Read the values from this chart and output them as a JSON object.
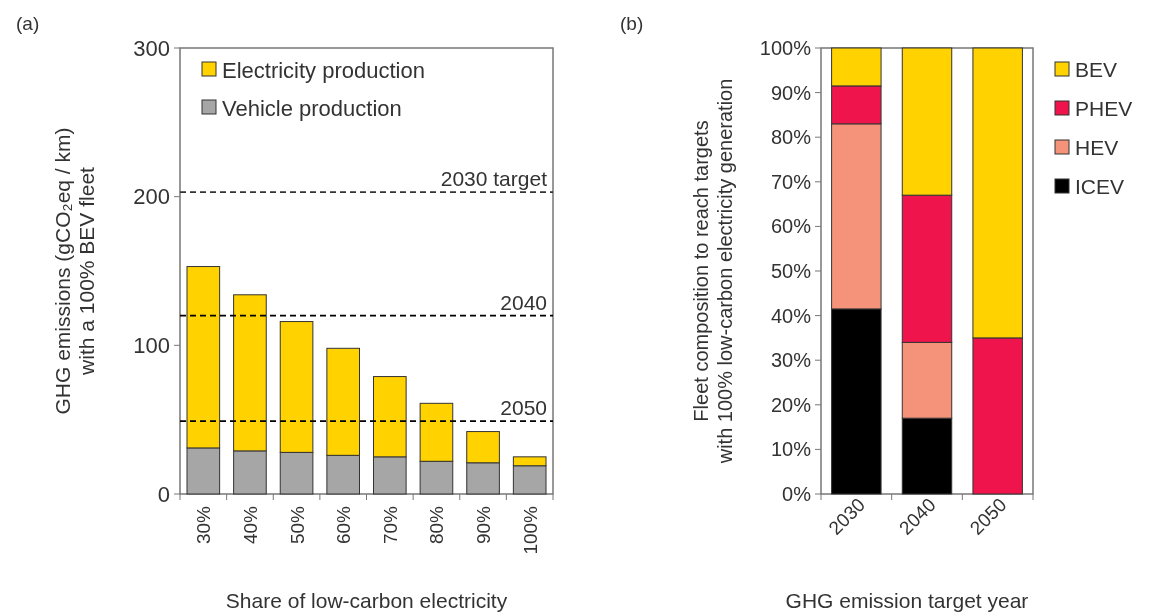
{
  "chart_data": [
    {
      "type": "bar",
      "stacked": true,
      "xlabel": "Share of low-carbon electricity",
      "ylabel": "GHG emissions (gCO₂eq / km)\nwith a 100% BEV fleet",
      "categories": [
        "30%",
        "40%",
        "50%",
        "60%",
        "70%",
        "80%",
        "90%",
        "100%"
      ],
      "series": [
        {
          "name": "Vehicle production",
          "color": "#a6a6a6",
          "values": [
            31,
            29,
            28,
            26,
            25,
            22,
            21,
            19
          ]
        },
        {
          "name": "Electricity production",
          "color": "#ffd200",
          "values": [
            122,
            105,
            88,
            72,
            54,
            39,
            21,
            6
          ]
        }
      ],
      "ylim": [
        0,
        300
      ],
      "yticks": [
        0,
        100,
        200,
        300
      ],
      "grid": false,
      "legend": "top left",
      "ref_lines": [
        {
          "axis": "y",
          "value": 203,
          "color": "#333333",
          "line_style": "dashed"
        },
        {
          "axis": "y",
          "value": 120,
          "color": "#000000",
          "line_style": "dashed"
        },
        {
          "axis": "y",
          "value": 49,
          "color": "#000000",
          "line_style": "dashed"
        }
      ],
      "annotations": [
        "(a)",
        {
          "text": "2030 target",
          "y": 203
        },
        {
          "text": "2040",
          "y": 120
        },
        {
          "text": "2050",
          "y": 49
        }
      ]
    },
    {
      "type": "bar",
      "stacked": true,
      "xlabel": "GHG emission target year",
      "ylabel": "Fleet composition to reach targets\nwith 100% low-carbon electricity generation",
      "categories": [
        "2030",
        "2040",
        "2050"
      ],
      "series": [
        {
          "name": "ICEV",
          "color": "#000000",
          "values": [
            41.5,
            17,
            0
          ]
        },
        {
          "name": "HEV",
          "color": "#f4937a",
          "values": [
            41.5,
            17,
            0
          ]
        },
        {
          "name": "PHEV",
          "color": "#f0144c",
          "values": [
            8.5,
            33,
            35
          ]
        },
        {
          "name": "BEV",
          "color": "#ffd200",
          "values": [
            8.5,
            33,
            65
          ]
        }
      ],
      "ylim": [
        0,
        100
      ],
      "yticks": [
        {
          "value": 0,
          "label": "0%"
        },
        {
          "value": 10,
          "label": "10%"
        },
        {
          "value": 20,
          "label": "20%"
        },
        {
          "value": 30,
          "label": "30%"
        },
        {
          "value": 40,
          "label": "40%"
        },
        {
          "value": 50,
          "label": "50%"
        },
        {
          "value": 60,
          "label": "60%"
        },
        {
          "value": 70,
          "label": "70%"
        },
        {
          "value": 80,
          "label": "80%"
        },
        {
          "value": 90,
          "label": "90%"
        },
        {
          "value": 100,
          "label": "100%"
        }
      ],
      "grid": false,
      "legend": "right",
      "annotations": [
        "(b)"
      ]
    }
  ]
}
